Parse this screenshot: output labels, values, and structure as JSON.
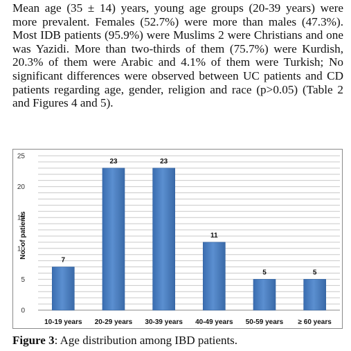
{
  "paragraph": "Mean age (35 ± 14) years, young age groups (20-39 years) were more prevalent. Females (52.7%) were more than males (47.3%). Most IDB patients (95.9%) were Muslims 2 were Christians and one was Yazidi. More than two-thirds of them (75.7%) were Kurdish, 20.3% of them were Arabic and 4.1% of them were Turkish; No significant differences were observed between UC patients and CD patients regarding age, gender, religion and race (p>0.05) (Table 2 and Figures 4 and 5).",
  "caption": {
    "label": "Figure 3",
    "text": ": Age distribution among IBD patients."
  },
  "chart_data": {
    "type": "bar",
    "categories": [
      "10-19 years",
      "20-29 years",
      "30-39 years",
      "40-49 years",
      "50-59 years",
      "≥ 60 years"
    ],
    "values": [
      7,
      23,
      23,
      11,
      5,
      5
    ],
    "data_labels": [
      "7",
      "23",
      "23",
      "11",
      "5",
      "5"
    ],
    "title": "",
    "xlabel": "",
    "ylabel": "No. of patients",
    "ylim": [
      0,
      25
    ],
    "yticks": [
      "0",
      "5",
      "10",
      "15",
      "20",
      "25"
    ],
    "grid": true,
    "legend": false,
    "bar_color": "#4a7ebb"
  }
}
